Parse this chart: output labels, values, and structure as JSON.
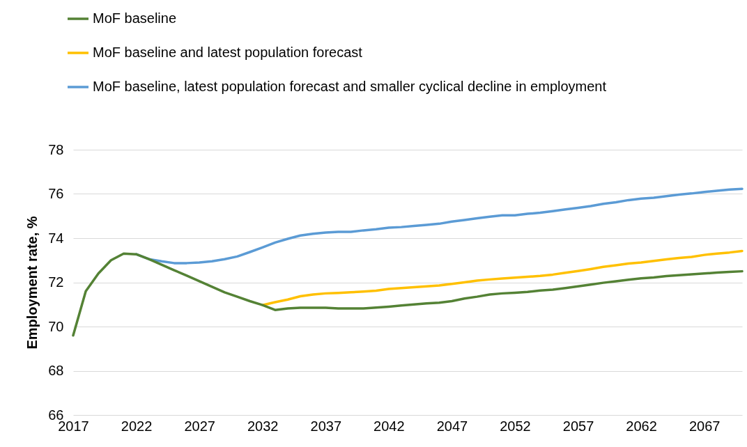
{
  "chart_data": {
    "type": "line",
    "ylabel": "Employment rate, %",
    "xlim": [
      2017,
      2070
    ],
    "xticks": [
      2017,
      2022,
      2027,
      2032,
      2037,
      2042,
      2047,
      2052,
      2057,
      2062,
      2067
    ],
    "ylim": [
      66,
      78
    ],
    "yticks": [
      66,
      68,
      70,
      72,
      74,
      76,
      78
    ],
    "grid": "y",
    "legend": "top left",
    "line_style": "solid",
    "marker": "none",
    "series": [
      {
        "name": "MoF baseline",
        "color": "#548235",
        "x": [
          2017,
          2018,
          2019,
          2020,
          2021,
          2022,
          2023,
          2024,
          2025,
          2026,
          2027,
          2028,
          2029,
          2030,
          2031,
          2032,
          2033,
          2034,
          2035,
          2036,
          2037,
          2038,
          2039,
          2040,
          2041,
          2042,
          2043,
          2044,
          2045,
          2046,
          2047,
          2048,
          2049,
          2050,
          2051,
          2052,
          2053,
          2054,
          2055,
          2056,
          2057,
          2058,
          2059,
          2060,
          2061,
          2062,
          2063,
          2064,
          2065,
          2066,
          2067,
          2068,
          2069,
          2070
        ],
        "values": [
          69.6,
          71.6,
          72.4,
          73.0,
          73.3,
          73.27,
          73.05,
          72.8,
          72.55,
          72.3,
          72.05,
          71.8,
          71.55,
          71.35,
          71.15,
          70.97,
          70.75,
          70.82,
          70.85,
          70.85,
          70.85,
          70.82,
          70.82,
          70.82,
          70.86,
          70.9,
          70.95,
          71.0,
          71.05,
          71.08,
          71.15,
          71.27,
          71.35,
          71.45,
          71.5,
          71.53,
          71.57,
          71.63,
          71.67,
          71.74,
          71.82,
          71.9,
          71.98,
          72.05,
          72.12,
          72.18,
          72.22,
          72.28,
          72.32,
          72.36,
          72.4,
          72.44,
          72.47,
          72.5
        ]
      },
      {
        "name": "MoF baseline and latest population forecast",
        "color": "#ffc000",
        "x": [
          2032,
          2033,
          2034,
          2035,
          2036,
          2037,
          2038,
          2039,
          2040,
          2041,
          2042,
          2043,
          2044,
          2045,
          2046,
          2047,
          2048,
          2049,
          2050,
          2051,
          2052,
          2053,
          2054,
          2055,
          2056,
          2057,
          2058,
          2059,
          2060,
          2061,
          2062,
          2063,
          2064,
          2065,
          2066,
          2067,
          2068,
          2069,
          2070
        ],
        "values": [
          70.97,
          71.1,
          71.22,
          71.37,
          71.45,
          71.5,
          71.52,
          71.55,
          71.58,
          71.62,
          71.7,
          71.74,
          71.78,
          71.82,
          71.86,
          71.93,
          72.0,
          72.08,
          72.13,
          72.17,
          72.21,
          72.25,
          72.29,
          72.35,
          72.43,
          72.51,
          72.6,
          72.7,
          72.77,
          72.85,
          72.9,
          72.97,
          73.04,
          73.1,
          73.15,
          73.24,
          73.3,
          73.35,
          73.42
        ]
      },
      {
        "name": "MoF baseline, latest population forecast and smaller cyclical decline in employment",
        "color": "#5b9bd5",
        "x": [
          2022,
          2023,
          2024,
          2025,
          2026,
          2027,
          2028,
          2029,
          2030,
          2031,
          2032,
          2033,
          2034,
          2035,
          2036,
          2037,
          2038,
          2039,
          2040,
          2041,
          2042,
          2043,
          2044,
          2045,
          2046,
          2047,
          2048,
          2049,
          2050,
          2051,
          2052,
          2053,
          2054,
          2055,
          2056,
          2057,
          2058,
          2059,
          2060,
          2061,
          2062,
          2063,
          2064,
          2065,
          2066,
          2067,
          2068,
          2069,
          2070
        ],
        "values": [
          73.27,
          73.05,
          72.95,
          72.87,
          72.87,
          72.9,
          72.95,
          73.05,
          73.17,
          73.37,
          73.58,
          73.8,
          73.97,
          74.12,
          74.2,
          74.25,
          74.28,
          74.28,
          74.35,
          74.4,
          74.47,
          74.5,
          74.55,
          74.6,
          74.65,
          74.75,
          74.82,
          74.9,
          74.97,
          75.03,
          75.03,
          75.1,
          75.15,
          75.22,
          75.3,
          75.37,
          75.45,
          75.55,
          75.62,
          75.72,
          75.79,
          75.83,
          75.9,
          75.97,
          76.02,
          76.09,
          76.14,
          76.2,
          76.23
        ]
      }
    ]
  }
}
